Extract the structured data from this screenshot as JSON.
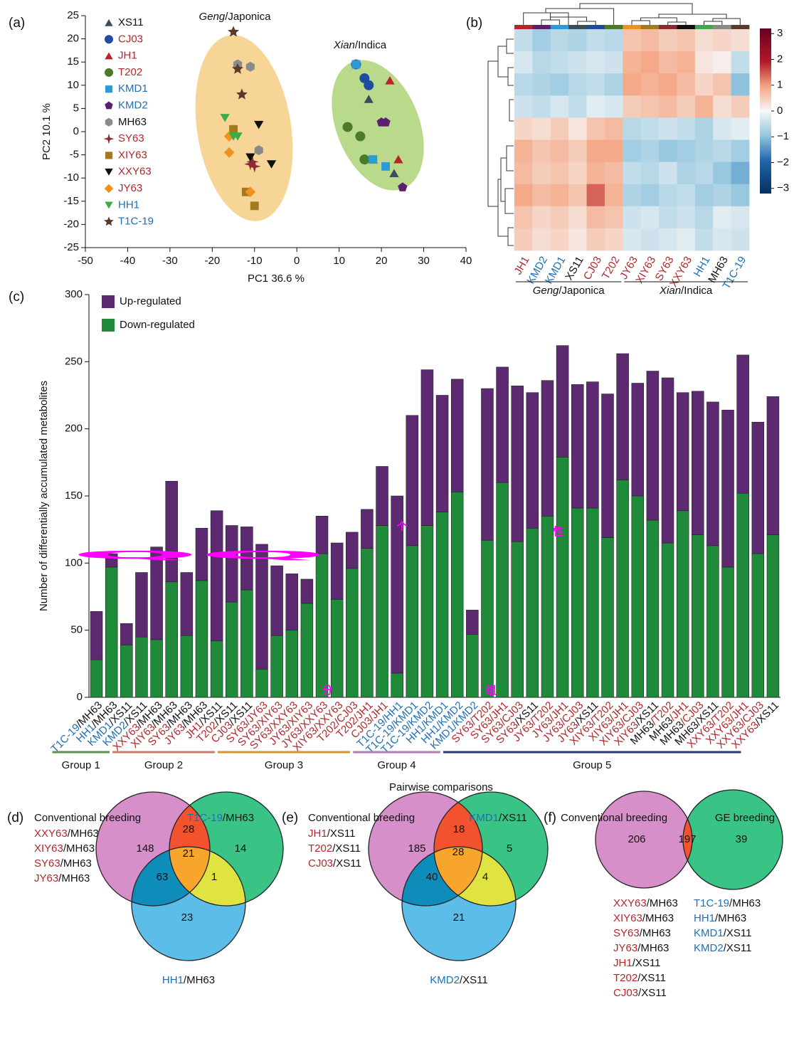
{
  "panel_labels": [
    "(a)",
    "(b)",
    "(c)",
    "(d)",
    "(e)",
    "(f)"
  ],
  "watermark": [
    "QQ",
    "个",
    "性",
    "分",
    "组"
  ],
  "name_colors": {
    "T1C-19": "#1f6fb4",
    "HH1": "#1f6fb4",
    "KMD1": "#1f6fb4",
    "KMD2": "#1f6fb4",
    "JH1": "#b0282c",
    "T202": "#b0282c",
    "CJ03": "#b0282c",
    "SY63": "#b0282c",
    "XIY63": "#b0282c",
    "XXY63": "#b0282c",
    "JY63": "#b0282c",
    "MH63": "#111111",
    "XS11": "#111111"
  },
  "chart_data": [
    {
      "type": "scatter",
      "xlabel": "PC1 36.6 %",
      "ylabel": "PC2 10.1 %",
      "xlim": [
        -50,
        40
      ],
      "ylim": [
        -25,
        25
      ],
      "xticks": [
        -50,
        -40,
        -30,
        -20,
        -10,
        0,
        10,
        20,
        30,
        40
      ],
      "yticks": [
        -25,
        -20,
        -15,
        -10,
        -5,
        0,
        5,
        10,
        15,
        20,
        25
      ],
      "annotations": [
        {
          "italic": "Geng",
          "text": "/Japonica"
        },
        {
          "italic": "Xian",
          "text": "/Indica"
        }
      ],
      "series": [
        {
          "name": "XS11",
          "color": "#3c4d5a",
          "marker": "triangle",
          "x": [
            17,
            18,
            23
          ],
          "y": [
            7,
            -6,
            -9
          ]
        },
        {
          "name": "CJ03",
          "color": "#1d4e9e",
          "marker": "circle",
          "x": [
            14,
            16,
            17
          ],
          "y": [
            14.5,
            11.5,
            10
          ]
        },
        {
          "name": "JH1",
          "color": "#b5252a",
          "marker": "triangle",
          "x": [
            22,
            24
          ],
          "y": [
            11,
            -6
          ]
        },
        {
          "name": "T202",
          "color": "#4b7a2c",
          "marker": "circle",
          "x": [
            12,
            15,
            16
          ],
          "y": [
            1,
            -1,
            -6
          ]
        },
        {
          "name": "KMD1",
          "color": "#2e9bd9",
          "marker": "square",
          "x": [
            14,
            18,
            21
          ],
          "y": [
            14.5,
            -6,
            -7.5
          ]
        },
        {
          "name": "KMD2",
          "color": "#5b1f6e",
          "marker": "pentagon",
          "x": [
            20,
            21,
            25
          ],
          "y": [
            2,
            2,
            -12
          ]
        },
        {
          "name": "MH63",
          "color": "#8a8a8a",
          "marker": "hexagon",
          "x": [
            -14,
            -11,
            -9
          ],
          "y": [
            14.5,
            14,
            -4
          ]
        },
        {
          "name": "SY63",
          "color": "#8b2a35",
          "marker": "star4",
          "x": [
            -11,
            -10,
            -10.5
          ],
          "y": [
            -7,
            -7.5,
            -6.5
          ]
        },
        {
          "name": "XIY63",
          "color": "#a57a1e",
          "marker": "square",
          "x": [
            -15,
            -12,
            -10
          ],
          "y": [
            0.5,
            -13,
            -16
          ]
        },
        {
          "name": "XXY63",
          "color": "#111111",
          "marker": "triangle-down",
          "x": [
            -9,
            -11,
            -6
          ],
          "y": [
            1.5,
            -5.5,
            -7
          ]
        },
        {
          "name": "JY63",
          "color": "#f0901f",
          "marker": "diamond",
          "x": [
            -16,
            -16,
            -11
          ],
          "y": [
            -1,
            -4.5,
            -13
          ]
        },
        {
          "name": "HH1",
          "color": "#3daa4a",
          "marker": "triangle-down",
          "x": [
            -17,
            -15,
            -14
          ],
          "y": [
            3,
            -1,
            -1
          ]
        },
        {
          "name": "T1C-19",
          "color": "#5a3b2a",
          "marker": "star",
          "x": [
            -15,
            -14,
            -13
          ],
          "y": [
            21.5,
            13.5,
            8
          ]
        }
      ]
    },
    {
      "type": "heatmap",
      "columns": [
        "JH1",
        "KMD2",
        "KMD1",
        "XS11",
        "CJ03",
        "T202",
        "JY63",
        "XIY63",
        "SY63",
        "XXY63",
        "HH1",
        "MH63",
        "T1C-19"
      ],
      "values": [
        [
          -0.5,
          -0.8,
          -0.6,
          -0.7,
          -0.5,
          -0.6,
          0.6,
          0.7,
          0.5,
          0.6,
          0.3,
          0.4,
          0.3
        ],
        [
          -0.3,
          -0.6,
          -0.5,
          -0.4,
          -0.3,
          -0.4,
          0.8,
          0.9,
          0.7,
          0.8,
          0.2,
          0.1,
          -0.5
        ],
        [
          -0.6,
          -0.7,
          -0.8,
          -0.6,
          -0.5,
          -0.7,
          0.9,
          0.8,
          0.9,
          0.7,
          0.4,
          0.6,
          -1.0
        ],
        [
          -0.4,
          -0.5,
          -0.3,
          -0.5,
          -0.2,
          -0.3,
          0.5,
          0.6,
          0.7,
          0.5,
          0.8,
          0.3,
          0.5
        ],
        [
          0.4,
          0.3,
          0.5,
          0.2,
          0.6,
          0.7,
          -0.6,
          -0.5,
          -0.4,
          -0.5,
          -0.7,
          -0.3,
          -0.2
        ],
        [
          0.8,
          0.6,
          0.7,
          0.5,
          0.9,
          0.9,
          -0.8,
          -0.7,
          -0.9,
          -0.8,
          -0.7,
          -0.6,
          -0.8
        ],
        [
          0.7,
          0.5,
          0.6,
          0.4,
          0.8,
          0.7,
          -0.5,
          -0.6,
          -0.4,
          -0.7,
          -0.6,
          -0.9,
          -1.2
        ],
        [
          0.9,
          0.7,
          0.8,
          0.6,
          1.4,
          0.8,
          -0.7,
          -0.8,
          -0.6,
          -0.5,
          -0.8,
          -0.7,
          -0.9
        ],
        [
          0.6,
          0.4,
          0.5,
          0.3,
          0.7,
          0.6,
          -0.4,
          -0.3,
          -0.5,
          -0.4,
          -0.6,
          -0.2,
          -0.3
        ],
        [
          0.5,
          0.3,
          0.4,
          0.2,
          0.5,
          0.4,
          -0.3,
          -0.4,
          -0.3,
          -0.2,
          -0.5,
          -0.3,
          -0.4
        ]
      ],
      "clim": [
        -3.2,
        3.2
      ],
      "cticks": [
        3,
        2,
        1,
        0,
        {
          "value": -1,
          "label": "−1"
        },
        {
          "value": -2,
          "label": "−2"
        },
        {
          "value": -3,
          "label": "−3"
        }
      ],
      "groups": [
        {
          "italic": "Geng",
          "text": "/Japonica",
          "first": 0,
          "last": 5
        },
        {
          "italic": "Xian",
          "text": "/Indica",
          "first": 6,
          "last": 12
        }
      ]
    },
    {
      "type": "stacked_bar",
      "xlabel": "Pairwise comparisons",
      "ylabel": "Number of differentially accumulated metabolites",
      "ylim": [
        0,
        300
      ],
      "yticks": [
        0,
        50,
        100,
        150,
        200,
        250,
        300
      ],
      "categories": [
        "T1C-19/MH63",
        "HH1/MH63",
        "KMD1/XS11",
        "KMD2/XS11",
        "XXY63/MH63",
        "XIY63/MH63",
        "SY63/MH63",
        "JY63/MH63",
        "JH1/XS11",
        "T202/XS11",
        "CJ03/XS11",
        "SY63/JY63",
        "SY63/XIY63",
        "SY63/XXY63",
        "JY63/XIY63",
        "JY63/XXY63",
        "XIY63/XXY63",
        "T202/CJ03",
        "T202/JH1",
        "CJ03/JH1",
        "T1C-19/HH1",
        "T1C-19/KMD1",
        "T1C-19/KMD2",
        "HH1/KMD1",
        "HH1/KMD2",
        "KMD1/KMD2",
        "SY63/T202",
        "SY63/JH1",
        "SY63/CJ03",
        "SY63/XS11",
        "JY63/T202",
        "JY63/JH1",
        "JY63/CJ03",
        "JY63/XS11",
        "XIY63/T202",
        "XIY63/JH1",
        "XIY63/CJ03",
        "XIY63/XS11",
        "MH63/T202",
        "MH63/JH1",
        "MH63/CJ03",
        "MH63/XS11",
        "XXY63/T202",
        "XXY63/JH1",
        "XXY63/CJ03",
        "XXY63/XS11"
      ],
      "series": [
        {
          "name": "Up-regulated",
          "color": "#5d2a72",
          "values": [
            36,
            10,
            16,
            48,
            69,
            75,
            47,
            39,
            97,
            57,
            47,
            93,
            52,
            42,
            18,
            28,
            42,
            27,
            29,
            44,
            132,
            97,
            116,
            87,
            84,
            18,
            113,
            86,
            116,
            101,
            101,
            83,
            92,
            94,
            107,
            94,
            84,
            111,
            123,
            88,
            107,
            107,
            117,
            103,
            98,
            103
          ]
        },
        {
          "name": "Down-regulated",
          "color": "#1f8a3a",
          "values": [
            28,
            97,
            39,
            45,
            43,
            86,
            46,
            87,
            42,
            71,
            80,
            21,
            46,
            50,
            70,
            107,
            73,
            96,
            111,
            128,
            18,
            113,
            128,
            138,
            153,
            47,
            117,
            160,
            116,
            126,
            135,
            179,
            141,
            141,
            119,
            162,
            150,
            132,
            115,
            139,
            121,
            113,
            97,
            152,
            107,
            121
          ]
        }
      ],
      "groups": [
        {
          "name": "Group 1",
          "first": 0,
          "last": 3,
          "color": "#5f8d52"
        },
        {
          "name": "Group 2",
          "first": 4,
          "last": 10,
          "color": "#c97c6d"
        },
        {
          "name": "Group 3",
          "first": 11,
          "last": 19,
          "color": "#d2962c"
        },
        {
          "name": "Group 4",
          "first": 20,
          "last": 25,
          "color": "#b27db2"
        },
        {
          "name": "Group 5",
          "first": 26,
          "last": 45,
          "color": "#2b3470"
        }
      ]
    },
    {
      "type": "venn",
      "sets": [
        {
          "name": "Conventional breeding",
          "members": [
            "XXY63/MH63",
            "XIY63/MH63",
            "SY63/MH63",
            "JY63/MH63"
          ]
        },
        {
          "name": "T1C-19/MH63"
        },
        {
          "name": "HH1/MH63"
        }
      ],
      "regions": [
        {
          "sets": [
            0
          ],
          "value": 148
        },
        {
          "sets": [
            1
          ],
          "value": 14
        },
        {
          "sets": [
            2
          ],
          "value": 23
        },
        {
          "sets": [
            0,
            1
          ],
          "value": 28
        },
        {
          "sets": [
            0,
            2
          ],
          "value": 63
        },
        {
          "sets": [
            1,
            2
          ],
          "value": 1
        },
        {
          "sets": [
            0,
            1,
            2
          ],
          "value": 21
        }
      ]
    },
    {
      "type": "venn",
      "sets": [
        {
          "name": "Conventional breeding",
          "members": [
            "JH1/XS11",
            "T202/XS11",
            "CJ03/XS11"
          ]
        },
        {
          "name": "KMD1/XS11"
        },
        {
          "name": "KMD2/XS11"
        }
      ],
      "regions": [
        {
          "sets": [
            0
          ],
          "value": 185
        },
        {
          "sets": [
            1
          ],
          "value": 5
        },
        {
          "sets": [
            2
          ],
          "value": 21
        },
        {
          "sets": [
            0,
            1
          ],
          "value": 18
        },
        {
          "sets": [
            0,
            2
          ],
          "value": 40
        },
        {
          "sets": [
            1,
            2
          ],
          "value": 4
        },
        {
          "sets": [
            0,
            1,
            2
          ],
          "value": 28
        }
      ]
    },
    {
      "type": "venn",
      "sets": [
        {
          "name": "Conventional breeding",
          "members": [
            "XXY63/MH63",
            "XIY63/MH63",
            "SY63/MH63",
            "JY63/MH63",
            "JH1/XS11",
            "T202/XS11",
            "CJ03/XS11"
          ]
        },
        {
          "name": "GE breeding",
          "members": [
            "T1C-19/MH63",
            "HH1/MH63",
            "KMD1/XS11",
            "KMD2/XS11"
          ]
        }
      ],
      "regions": [
        {
          "sets": [
            0
          ],
          "value": 206
        },
        {
          "sets": [
            1
          ],
          "value": 39
        },
        {
          "sets": [
            0,
            1
          ],
          "value": 197
        }
      ]
    }
  ]
}
